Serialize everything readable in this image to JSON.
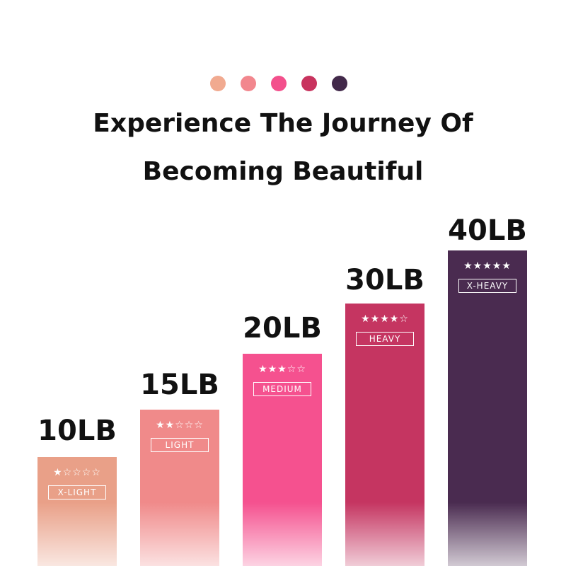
{
  "title": {
    "lines": [
      "Experience The Journey Of",
      "Becoming Beautiful"
    ]
  },
  "bands": [
    {
      "weight": "10LB",
      "stars": "★☆☆☆☆",
      "level": "X-LIGHT"
    },
    {
      "weight": "15LB",
      "stars": "★★☆☆☆",
      "level": "LIGHT"
    },
    {
      "weight": "20LB",
      "stars": "★★★☆☆",
      "level": "MEDIUM"
    },
    {
      "weight": "30LB",
      "stars": "★★★★☆",
      "level": "HEAVY"
    },
    {
      "weight": "40LB",
      "stars": "★★★★★",
      "level": "X-HEAVY"
    }
  ]
}
